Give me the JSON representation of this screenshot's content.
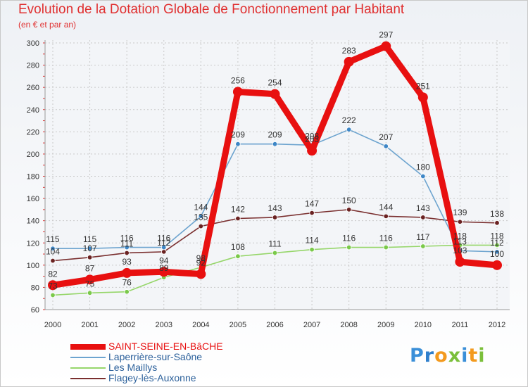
{
  "header": {
    "title": "Evolution de la Dotation Globale de Fonctionnement par Habitant",
    "subtitle": "(en € et par an)"
  },
  "brand": {
    "letters": [
      "P",
      "r",
      "o",
      "x",
      "i",
      "t",
      "i"
    ],
    "colors": [
      "#3a8fd8",
      "#2f7fcc",
      "#f39a1e",
      "#7bbf3a",
      "#3a8fd8",
      "#f39a1e",
      "#7bbf3a"
    ]
  },
  "chart_data": {
    "type": "line",
    "title": "Evolution de la Dotation Globale de Fonctionnement par Habitant",
    "ylabel": "(en € et par an)",
    "xlabel": "",
    "ylim": [
      60,
      300
    ],
    "yticks": [
      60,
      80,
      100,
      120,
      140,
      160,
      180,
      200,
      220,
      240,
      260,
      280,
      300
    ],
    "categories": [
      "2000",
      "2001",
      "2002",
      "2003",
      "2004",
      "2005",
      "2006",
      "2007",
      "2008",
      "2009",
      "2010",
      "2011",
      "2012"
    ],
    "grid": true,
    "legend_position": "bottom-left",
    "series": [
      {
        "name": "Flagey-lès-Auxonne",
        "color": "#7a2f2f",
        "dot": "#6a2222",
        "emphasis": false,
        "values": [
          104,
          107,
          111,
          112,
          135,
          142,
          143,
          147,
          150,
          144,
          143,
          139,
          138
        ]
      },
      {
        "name": "Les Maillys",
        "color": "#96d66a",
        "dot": "#7ac94a",
        "emphasis": false,
        "values": [
          73,
          75,
          76,
          89,
          98,
          108,
          111,
          114,
          116,
          116,
          117,
          118,
          118
        ]
      },
      {
        "name": "Laperrière-sur-Saône",
        "color": "#6da4cf",
        "dot": "#3d86c6",
        "emphasis": false,
        "values": [
          115,
          115,
          116,
          116,
          144,
          209,
          209,
          208,
          222,
          207,
          180,
          113,
          112
        ]
      },
      {
        "name": "SAINT-SEINE-EN-BâCHE",
        "color": "#e81010",
        "dot": "#e81010",
        "emphasis": true,
        "values": [
          82,
          87,
          93,
          94,
          92,
          256,
          254,
          203,
          283,
          297,
          251,
          103,
          100
        ]
      }
    ],
    "legend_order": [
      "SAINT-SEINE-EN-BâCHE",
      "Laperrière-sur-Saône",
      "Les Maillys",
      "Flagey-lès-Auxonne"
    ]
  }
}
